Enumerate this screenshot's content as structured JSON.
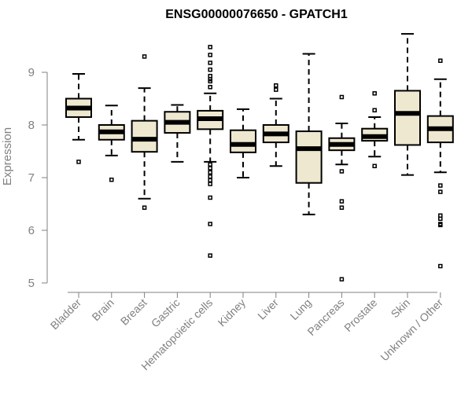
{
  "chart_data": {
    "type": "boxplot",
    "title": "ENSG00000076650 - GPATCH1",
    "xlabel": "",
    "ylabel": "Expression",
    "ylim": [
      5,
      9.8
    ],
    "yticks": [
      5,
      6,
      7,
      8,
      9
    ],
    "box_color": "#EEE8D0",
    "categories": [
      "Bladder",
      "Brain",
      "Breast",
      "Gastric",
      "Hematopoietic cells",
      "Kidney",
      "Liver",
      "Lung",
      "Pancreas",
      "Prostate",
      "Skin",
      "Unknown / Other"
    ],
    "series": [
      {
        "name": "Bladder",
        "min": 7.72,
        "q1": 8.15,
        "median": 8.32,
        "q3": 8.5,
        "max": 8.97,
        "outliers": [
          7.3
        ]
      },
      {
        "name": "Brain",
        "min": 7.42,
        "q1": 7.72,
        "median": 7.87,
        "q3": 8.0,
        "max": 8.37,
        "outliers": [
          6.96
        ]
      },
      {
        "name": "Breast",
        "min": 6.6,
        "q1": 7.49,
        "median": 7.73,
        "q3": 8.08,
        "max": 8.7,
        "outliers": [
          9.3,
          6.43
        ]
      },
      {
        "name": "Gastric",
        "min": 7.3,
        "q1": 7.85,
        "median": 8.05,
        "q3": 8.25,
        "max": 8.38,
        "outliers": []
      },
      {
        "name": "Hematopoietic cells",
        "min": 7.3,
        "q1": 7.92,
        "median": 8.12,
        "q3": 8.27,
        "max": 8.6,
        "outliers": [
          9.48,
          9.33,
          9.18,
          9.05,
          8.93,
          8.87,
          8.83,
          8.72,
          7.25,
          7.18,
          7.1,
          7.02,
          6.95,
          6.88,
          6.62,
          6.12,
          5.52
        ]
      },
      {
        "name": "Kidney",
        "min": 7.0,
        "q1": 7.48,
        "median": 7.63,
        "q3": 7.9,
        "max": 8.3,
        "outliers": []
      },
      {
        "name": "Liver",
        "min": 7.22,
        "q1": 7.67,
        "median": 7.83,
        "q3": 8.0,
        "max": 8.5,
        "outliers": [
          8.75,
          8.67
        ]
      },
      {
        "name": "Lung",
        "min": 6.3,
        "q1": 6.9,
        "median": 7.55,
        "q3": 7.88,
        "max": 9.35,
        "outliers": []
      },
      {
        "name": "Pancreas",
        "min": 7.25,
        "q1": 7.52,
        "median": 7.63,
        "q3": 7.75,
        "max": 8.03,
        "outliers": [
          8.53,
          7.12,
          6.55,
          6.43,
          5.07
        ]
      },
      {
        "name": "Prostate",
        "min": 7.4,
        "q1": 7.7,
        "median": 7.78,
        "q3": 7.93,
        "max": 8.15,
        "outliers": [
          8.6,
          8.28,
          7.22
        ]
      },
      {
        "name": "Skin",
        "min": 7.05,
        "q1": 7.62,
        "median": 8.22,
        "q3": 8.65,
        "max": 9.73,
        "outliers": []
      },
      {
        "name": "Unknown / Other",
        "min": 7.1,
        "q1": 7.67,
        "median": 7.93,
        "q3": 8.17,
        "max": 8.87,
        "outliers": [
          9.22,
          6.85,
          6.73,
          6.28,
          6.22,
          6.12,
          6.1,
          5.32
        ]
      }
    ]
  }
}
